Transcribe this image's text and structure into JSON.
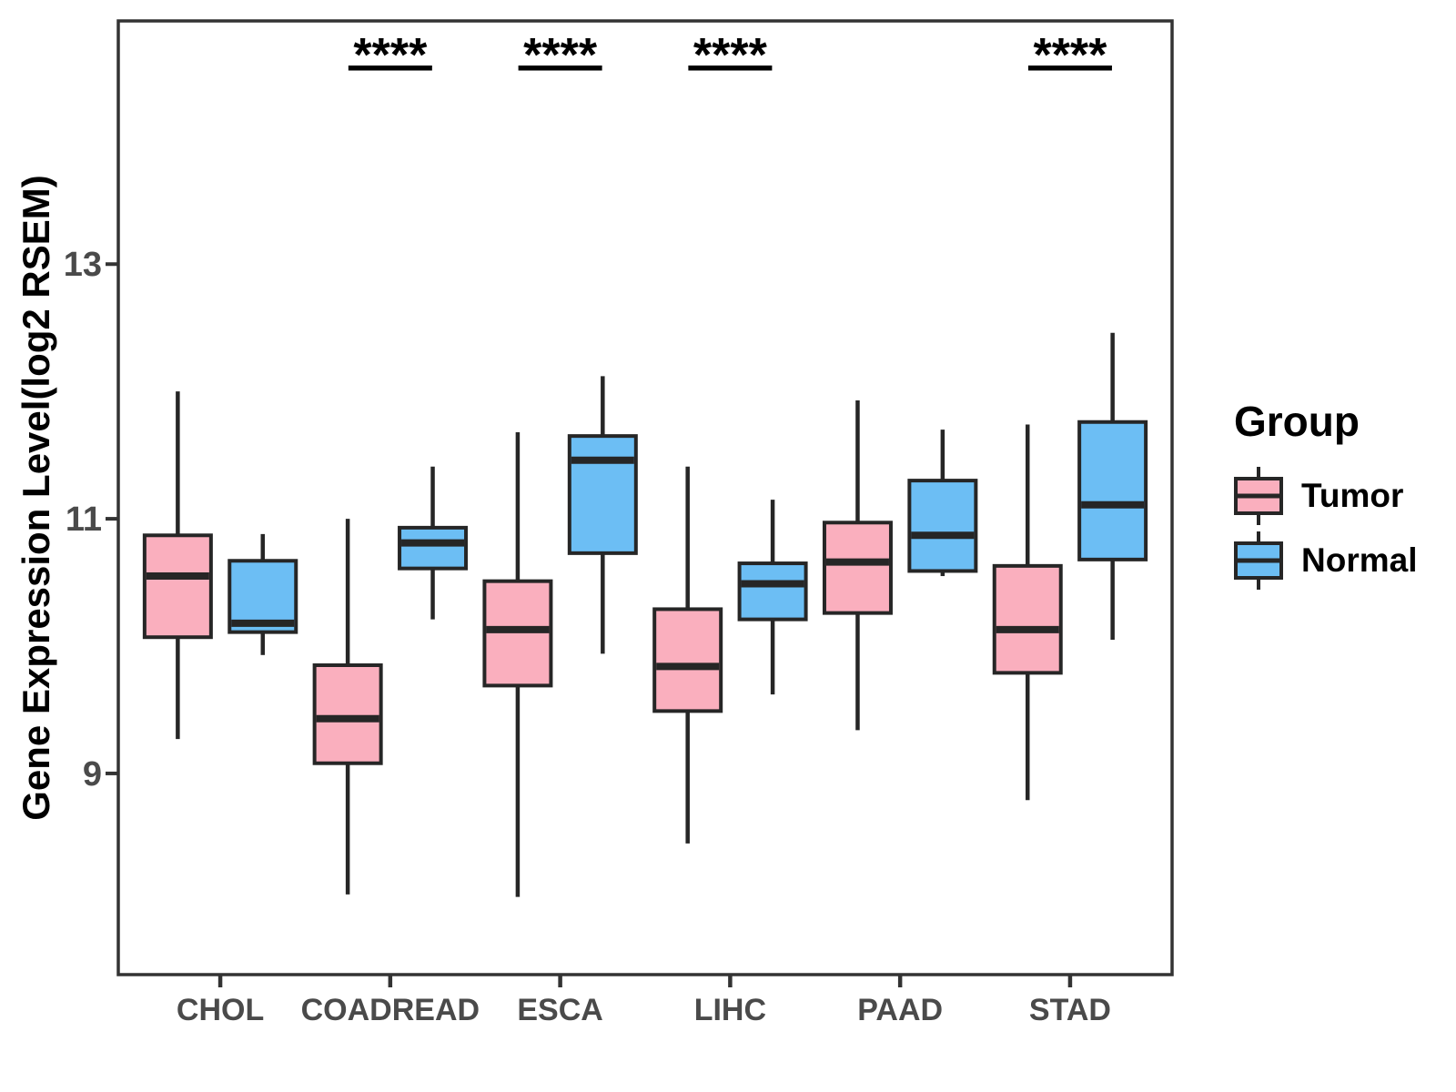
{
  "chart_data": {
    "type": "boxplot",
    "title": "",
    "xlabel": "",
    "ylabel": "Gene Expression Level(log2 RSEM)",
    "ylim": [
      7.42,
      14.91
    ],
    "yticks": [
      9,
      11,
      13
    ],
    "grid": false,
    "categories": [
      "CHOL",
      "COADREAD",
      "ESCA",
      "LIHC",
      "PAAD",
      "STAD"
    ],
    "series": [
      {
        "name": "Tumor",
        "color": "#FAAFBE",
        "values": [
          {
            "min": 9.27,
            "q1": 10.07,
            "median": 10.55,
            "q3": 10.87,
            "max": 12.0
          },
          {
            "min": 8.05,
            "q1": 9.08,
            "median": 9.43,
            "q3": 9.85,
            "max": 11.0
          },
          {
            "min": 8.03,
            "q1": 9.69,
            "median": 10.13,
            "q3": 10.51,
            "max": 11.68
          },
          {
            "min": 8.45,
            "q1": 9.49,
            "median": 9.84,
            "q3": 10.29,
            "max": 11.41
          },
          {
            "min": 9.34,
            "q1": 10.26,
            "median": 10.66,
            "q3": 10.97,
            "max": 11.93
          },
          {
            "min": 8.79,
            "q1": 9.79,
            "median": 10.13,
            "q3": 10.63,
            "max": 11.74
          }
        ]
      },
      {
        "name": "Normal",
        "color": "#6CBEF4",
        "values": [
          {
            "min": 9.93,
            "q1": 10.11,
            "median": 10.18,
            "q3": 10.67,
            "max": 10.88
          },
          {
            "min": 10.21,
            "q1": 10.61,
            "median": 10.81,
            "q3": 10.93,
            "max": 11.41
          },
          {
            "min": 9.94,
            "q1": 10.73,
            "median": 11.46,
            "q3": 11.65,
            "max": 12.12
          },
          {
            "min": 9.62,
            "q1": 10.21,
            "median": 10.49,
            "q3": 10.65,
            "max": 11.15
          },
          {
            "min": 10.55,
            "q1": 10.59,
            "median": 10.87,
            "q3": 11.3,
            "max": 11.7
          },
          {
            "min": 10.05,
            "q1": 10.68,
            "median": 11.11,
            "q3": 11.76,
            "max": 12.46
          }
        ]
      }
    ],
    "significance": [
      {
        "category": "COADREAD",
        "label": "****"
      },
      {
        "category": "ESCA",
        "label": "****"
      },
      {
        "category": "LIHC",
        "label": "****"
      },
      {
        "category": "STAD",
        "label": "****"
      }
    ],
    "legend": {
      "title": "Group",
      "position": "right"
    }
  },
  "styles": {
    "box_border": "#262626",
    "axis_line": "#333333",
    "axis_text": "#4A4A4A",
    "marker_color": "#000000",
    "background": "#FFFFFF"
  }
}
